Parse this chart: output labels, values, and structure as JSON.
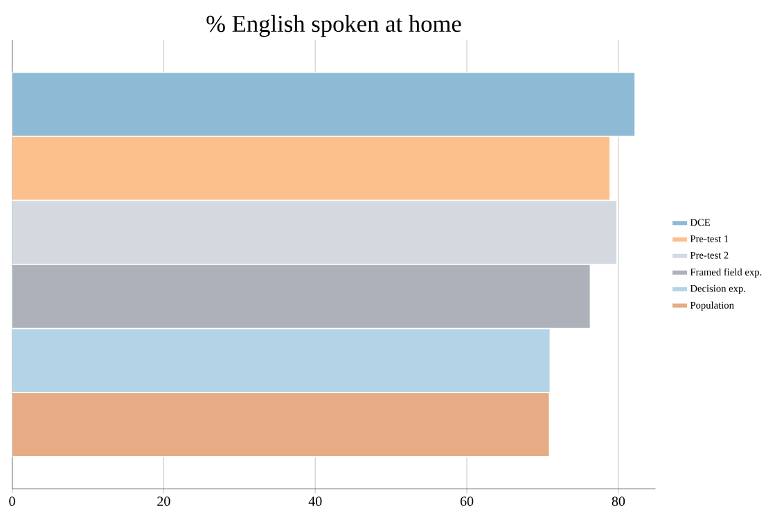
{
  "chart_data": {
    "type": "bar",
    "orientation": "horizontal",
    "title": "% English spoken at home",
    "categories": [
      null
    ],
    "series": [
      {
        "name": "DCE",
        "color": "#8fbad6",
        "values": [
          82.2
        ]
      },
      {
        "name": "Pre-test 1",
        "color": "#fbc08c",
        "values": [
          78.9
        ]
      },
      {
        "name": "Pre-test 2",
        "color": "#d4d9e0",
        "values": [
          79.8
        ]
      },
      {
        "name": "Framed field exp.",
        "color": "#adb1b9",
        "values": [
          76.3
        ]
      },
      {
        "name": "Decision exp.",
        "color": "#b3d4e6",
        "values": [
          71.0
        ]
      },
      {
        "name": "Population",
        "color": "#e5ac85",
        "values": [
          70.9
        ]
      }
    ],
    "xlim": [
      0,
      84.9
    ],
    "xticks": [
      0,
      20,
      40,
      60,
      80
    ],
    "grid": "x",
    "legend": "right",
    "tick_labels": "x"
  }
}
